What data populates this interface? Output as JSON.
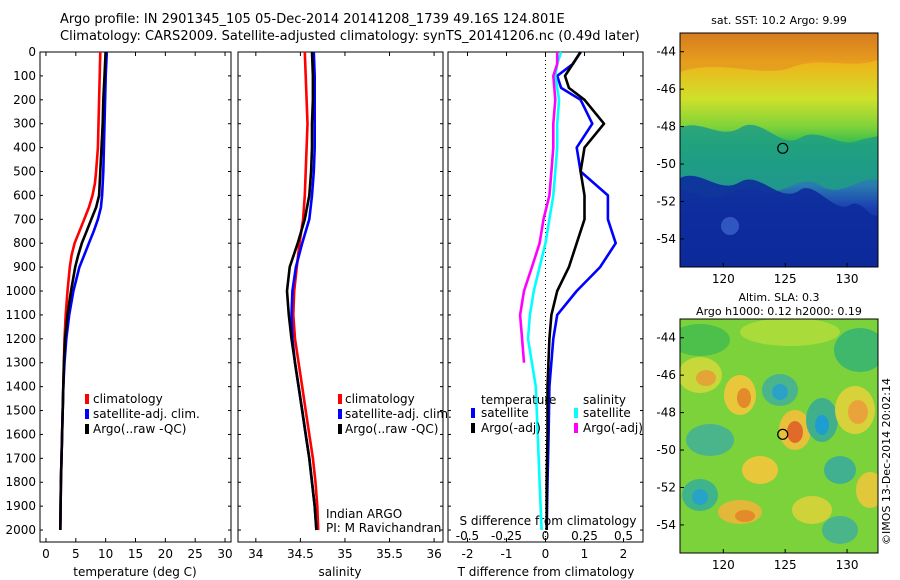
{
  "header": {
    "line1": "Argo profile: IN 2901345_105 05-Dec-2014 20141208_1739 49.16S 124.801E",
    "line2": "Climatology: CARS2009. Satellite-adjusted climatology: synTS_20141206.nc (0.49d later)"
  },
  "colors": {
    "climatology": "#ff0000",
    "satellite": "#0000ff",
    "argo": "#000000",
    "sal_satellite": "#00ffff",
    "sal_argo": "#ff00ff"
  },
  "chart_data": [
    {
      "type": "line",
      "panel": "temperature",
      "xlabel": "temperature (deg C)",
      "ylabel": "",
      "xlim": [
        -1,
        31
      ],
      "ylim": [
        2050,
        0
      ],
      "xticks": [
        0,
        5,
        10,
        15,
        20,
        25,
        30
      ],
      "yticks": [
        0,
        100,
        200,
        300,
        400,
        500,
        600,
        700,
        800,
        900,
        1000,
        1100,
        1200,
        1300,
        1400,
        1500,
        1600,
        1700,
        1800,
        1900,
        2000
      ],
      "legend": {
        "position": "lower-middle",
        "entries": [
          "climatology",
          "satellite-adj. clim.",
          "Argo(..raw -QC)"
        ]
      },
      "series": [
        {
          "name": "climatology",
          "color": "#ff0000",
          "y": [
            0,
            100,
            200,
            300,
            400,
            500,
            550,
            600,
            650,
            700,
            750,
            800,
            850,
            900,
            1000,
            1100,
            1200,
            1300,
            1400,
            1500,
            1600,
            1700,
            1800,
            1900,
            2000
          ],
          "x": [
            9.1,
            9.0,
            8.9,
            8.8,
            8.7,
            8.4,
            8.2,
            7.8,
            7.2,
            6.4,
            5.6,
            4.8,
            4.3,
            4.0,
            3.6,
            3.3,
            3.1,
            3.0,
            2.9,
            2.8,
            2.7,
            2.6,
            2.5,
            2.45,
            2.4
          ]
        },
        {
          "name": "satellite-adj. clim.",
          "color": "#0000ff",
          "y": [
            0,
            100,
            200,
            300,
            400,
            500,
            550,
            600,
            650,
            700,
            750,
            800,
            850,
            900,
            1000,
            1100,
            1200,
            1300,
            1400,
            1500,
            1600,
            1700,
            1800,
            1900,
            2000
          ],
          "x": [
            10.2,
            10.0,
            9.9,
            9.8,
            9.7,
            9.6,
            9.5,
            9.4,
            9.2,
            8.7,
            8.0,
            7.2,
            6.4,
            5.6,
            4.6,
            3.9,
            3.4,
            3.1,
            2.9,
            2.8,
            2.7,
            2.6,
            2.5,
            2.45,
            2.4
          ]
        },
        {
          "name": "Argo(..raw -QC)",
          "color": "#000000",
          "y": [
            0,
            100,
            200,
            300,
            400,
            500,
            550,
            600,
            650,
            700,
            750,
            800,
            850,
            900,
            1000,
            1100,
            1200,
            1300,
            1400,
            1500,
            1600,
            1700,
            1800,
            1900,
            2000
          ],
          "x": [
            9.99,
            9.8,
            9.6,
            9.5,
            9.3,
            9.1,
            9.0,
            8.9,
            8.4,
            7.6,
            6.8,
            6.0,
            5.4,
            4.9,
            4.2,
            3.6,
            3.2,
            3.0,
            2.9,
            2.8,
            2.7,
            2.6,
            2.5,
            2.45,
            2.4
          ]
        }
      ]
    },
    {
      "type": "line",
      "panel": "salinity",
      "xlabel": "salinity",
      "xlim": [
        33.8,
        36.1
      ],
      "ylim": [
        2050,
        0
      ],
      "xticks": [
        34,
        34.5,
        35,
        35.5,
        36
      ],
      "legend": {
        "position": "lower-right",
        "entries": [
          "climatology",
          "satellite-adj. clim.",
          "Argo(..raw -QC)"
        ]
      },
      "annotation": [
        "Indian ARGO",
        "PI: M Ravichandran"
      ],
      "series": [
        {
          "name": "climatology",
          "color": "#ff0000",
          "y": [
            0,
            100,
            200,
            300,
            400,
            500,
            600,
            700,
            800,
            900,
            1000,
            1100,
            1200,
            1300,
            1400,
            1500,
            1600,
            1700,
            1800,
            1900,
            2000
          ],
          "x": [
            34.55,
            34.56,
            34.57,
            34.58,
            34.57,
            34.56,
            34.55,
            34.53,
            34.49,
            34.46,
            34.43,
            34.42,
            34.44,
            34.48,
            34.52,
            34.56,
            34.6,
            34.64,
            34.67,
            34.69,
            34.7
          ]
        },
        {
          "name": "satellite-adj. clim.",
          "color": "#0000ff",
          "y": [
            0,
            100,
            200,
            300,
            400,
            500,
            600,
            700,
            800,
            900,
            1000,
            1100,
            1200,
            1300,
            1400,
            1500,
            1600,
            1700,
            1800,
            1900,
            2000
          ],
          "x": [
            34.65,
            34.66,
            34.66,
            34.66,
            34.66,
            34.65,
            34.63,
            34.6,
            34.52,
            34.45,
            34.41,
            34.4,
            34.41,
            34.44,
            34.48,
            34.52,
            34.56,
            34.6,
            34.63,
            34.66,
            34.68
          ]
        },
        {
          "name": "Argo(..raw -QC)",
          "color": "#000000",
          "y": [
            0,
            100,
            200,
            300,
            400,
            500,
            600,
            700,
            800,
            900,
            1000,
            1100,
            1200,
            1300,
            1400,
            1500,
            1600,
            1700,
            1800,
            1900,
            2000
          ],
          "x": [
            34.63,
            34.64,
            34.64,
            34.63,
            34.63,
            34.62,
            34.6,
            34.55,
            34.47,
            34.38,
            34.35,
            34.37,
            34.4,
            34.44,
            34.48,
            34.52,
            34.56,
            34.6,
            34.63,
            34.66,
            34.68
          ]
        }
      ]
    },
    {
      "type": "line",
      "panel": "difference",
      "xlabel": "T difference from climatology",
      "top_label": "S difference from climatology",
      "xlim": [
        -2.5,
        2.5
      ],
      "ylim": [
        2050,
        0
      ],
      "xticks": [
        -2,
        -1,
        0,
        1,
        2
      ],
      "s_ticks": [
        "-0.5",
        "-0.25",
        "0",
        "0.25",
        "0.5"
      ],
      "s_tick_t_values": [
        -2,
        -1,
        0,
        1,
        2
      ],
      "legend": {
        "position": "lower-middle",
        "temperature_title": "temperature",
        "salinity_title": "salinity",
        "temperature_entries": [
          "satellite",
          "Argo(-adj)"
        ],
        "salinity_entries": [
          "satellite",
          "Argo(-adj)"
        ]
      },
      "series": [
        {
          "name": "T satellite",
          "color": "#0000ff",
          "y": [
            0,
            50,
            100,
            150,
            200,
            300,
            400,
            500,
            600,
            700,
            800,
            900,
            1000,
            1100,
            1200,
            1400,
            1600,
            1800,
            2000
          ],
          "x": [
            0.9,
            0.7,
            0.3,
            0.4,
            0.9,
            1.2,
            0.8,
            0.9,
            1.6,
            1.6,
            1.8,
            1.4,
            0.8,
            0.3,
            0.2,
            0.1,
            0.08,
            0.05,
            0.03
          ]
        },
        {
          "name": "T Argo(-adj)",
          "color": "#000000",
          "y": [
            0,
            50,
            100,
            150,
            200,
            300,
            400,
            500,
            600,
            700,
            800,
            900,
            1000,
            1100,
            1200,
            1400,
            1600,
            1800,
            2000
          ],
          "x": [
            0.9,
            0.7,
            0.5,
            0.6,
            1.0,
            1.5,
            1.0,
            0.9,
            1.0,
            1.0,
            0.8,
            0.6,
            0.3,
            0.15,
            0.1,
            0.05,
            0.05,
            0.03,
            0.03
          ]
        },
        {
          "name": "S satellite",
          "color": "#00ffff",
          "y": [
            0,
            50,
            100,
            200,
            300,
            400,
            500,
            600,
            700,
            800,
            900,
            1000,
            1100,
            1200,
            1300,
            1400,
            1600,
            1800,
            2000
          ],
          "x": [
            0.4,
            0.3,
            0.25,
            0.35,
            0.3,
            0.3,
            0.25,
            0.2,
            0.1,
            0.0,
            -0.15,
            -0.3,
            -0.4,
            -0.45,
            -0.35,
            -0.25,
            -0.2,
            -0.15,
            -0.1
          ]
        },
        {
          "name": "S Argo(-adj)",
          "color": "#ff00ff",
          "y": [
            0,
            50,
            100,
            200,
            300,
            400,
            500,
            600,
            700,
            800,
            900,
            1000,
            1100,
            1200,
            1300
          ],
          "x": [
            0.3,
            0.3,
            0.2,
            0.25,
            0.2,
            0.2,
            0.15,
            0.1,
            -0.05,
            -0.15,
            -0.35,
            -0.55,
            -0.65,
            -0.6,
            -0.55
          ]
        }
      ]
    },
    {
      "type": "heatmap",
      "panel": "sst_map",
      "title": "sat. SST: 10.2  Argo: 9.99",
      "xticks": [
        120,
        125,
        130
      ],
      "yticks": [
        -44,
        -46,
        -48,
        -50,
        -52,
        -54
      ],
      "xlim": [
        116.5,
        132.5
      ],
      "ylim": [
        -55.5,
        -43
      ],
      "marker": {
        "lon": 124.801,
        "lat": -49.16
      }
    },
    {
      "type": "heatmap",
      "panel": "sla_map",
      "title": "Altim. SLA: 0.3",
      "subtitle": "Argo h1000: 0.12  h2000: 0.19",
      "xticks": [
        120,
        125,
        130
      ],
      "yticks": [
        -44,
        -46,
        -48,
        -50,
        -52,
        -54
      ],
      "xlim": [
        116.5,
        132.5
      ],
      "ylim": [
        -55.5,
        -43
      ],
      "marker": {
        "lon": 124.801,
        "lat": -49.16
      },
      "side_label": "©IMOS 13-Dec-2014 20:02:14"
    }
  ]
}
